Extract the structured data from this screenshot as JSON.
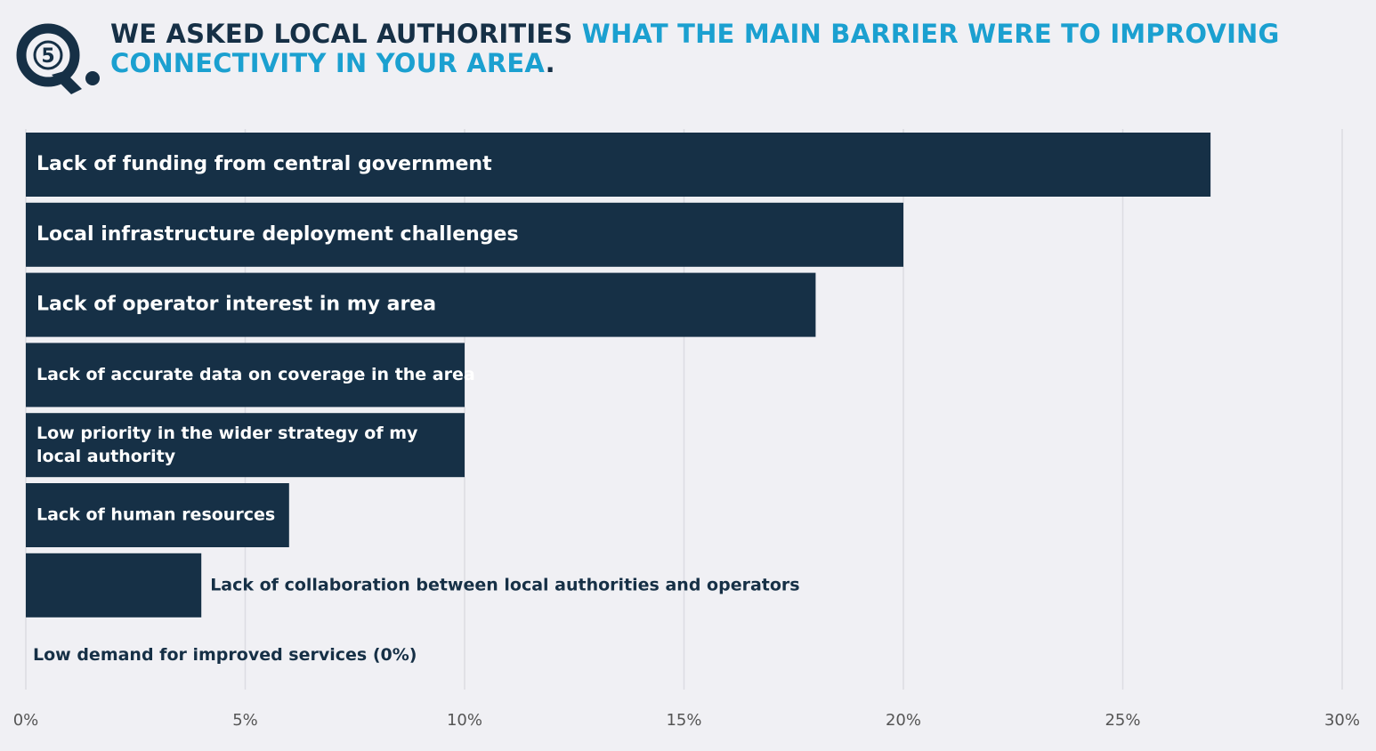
{
  "header": {
    "badge_number": "5",
    "title_part1": "WE ASKED LOCAL AUTHORITIES ",
    "title_part2": "WHAT THE MAIN BARRIER WERE TO IMPROVING CONNECTIVITY IN YOUR AREA",
    "title_end": "."
  },
  "colors": {
    "bar": "#163046",
    "accent": "#1ba0d0",
    "background": "#f0f0f4",
    "grid": "#dcdce2"
  },
  "chart_data": {
    "type": "bar",
    "orientation": "horizontal",
    "categories": [
      "Lack of funding from central government",
      "Local infrastructure deployment challenges",
      "Lack of operator interest in my area",
      "Lack of accurate data on coverage in the area",
      "Low priority in the wider strategy of my local authority",
      "Lack of human resources",
      "Lack of collaboration between local authorities and operators",
      "Low demand for improved services (0%)"
    ],
    "values": [
      27,
      20,
      18,
      10,
      10,
      6,
      4,
      0
    ],
    "xlim": [
      0,
      30
    ],
    "xticks": [
      "0%",
      "5%",
      "10%",
      "15%",
      "20%",
      "25%",
      "30%"
    ],
    "grid": "vertical",
    "xlabel": "",
    "ylabel": "",
    "title": ""
  }
}
